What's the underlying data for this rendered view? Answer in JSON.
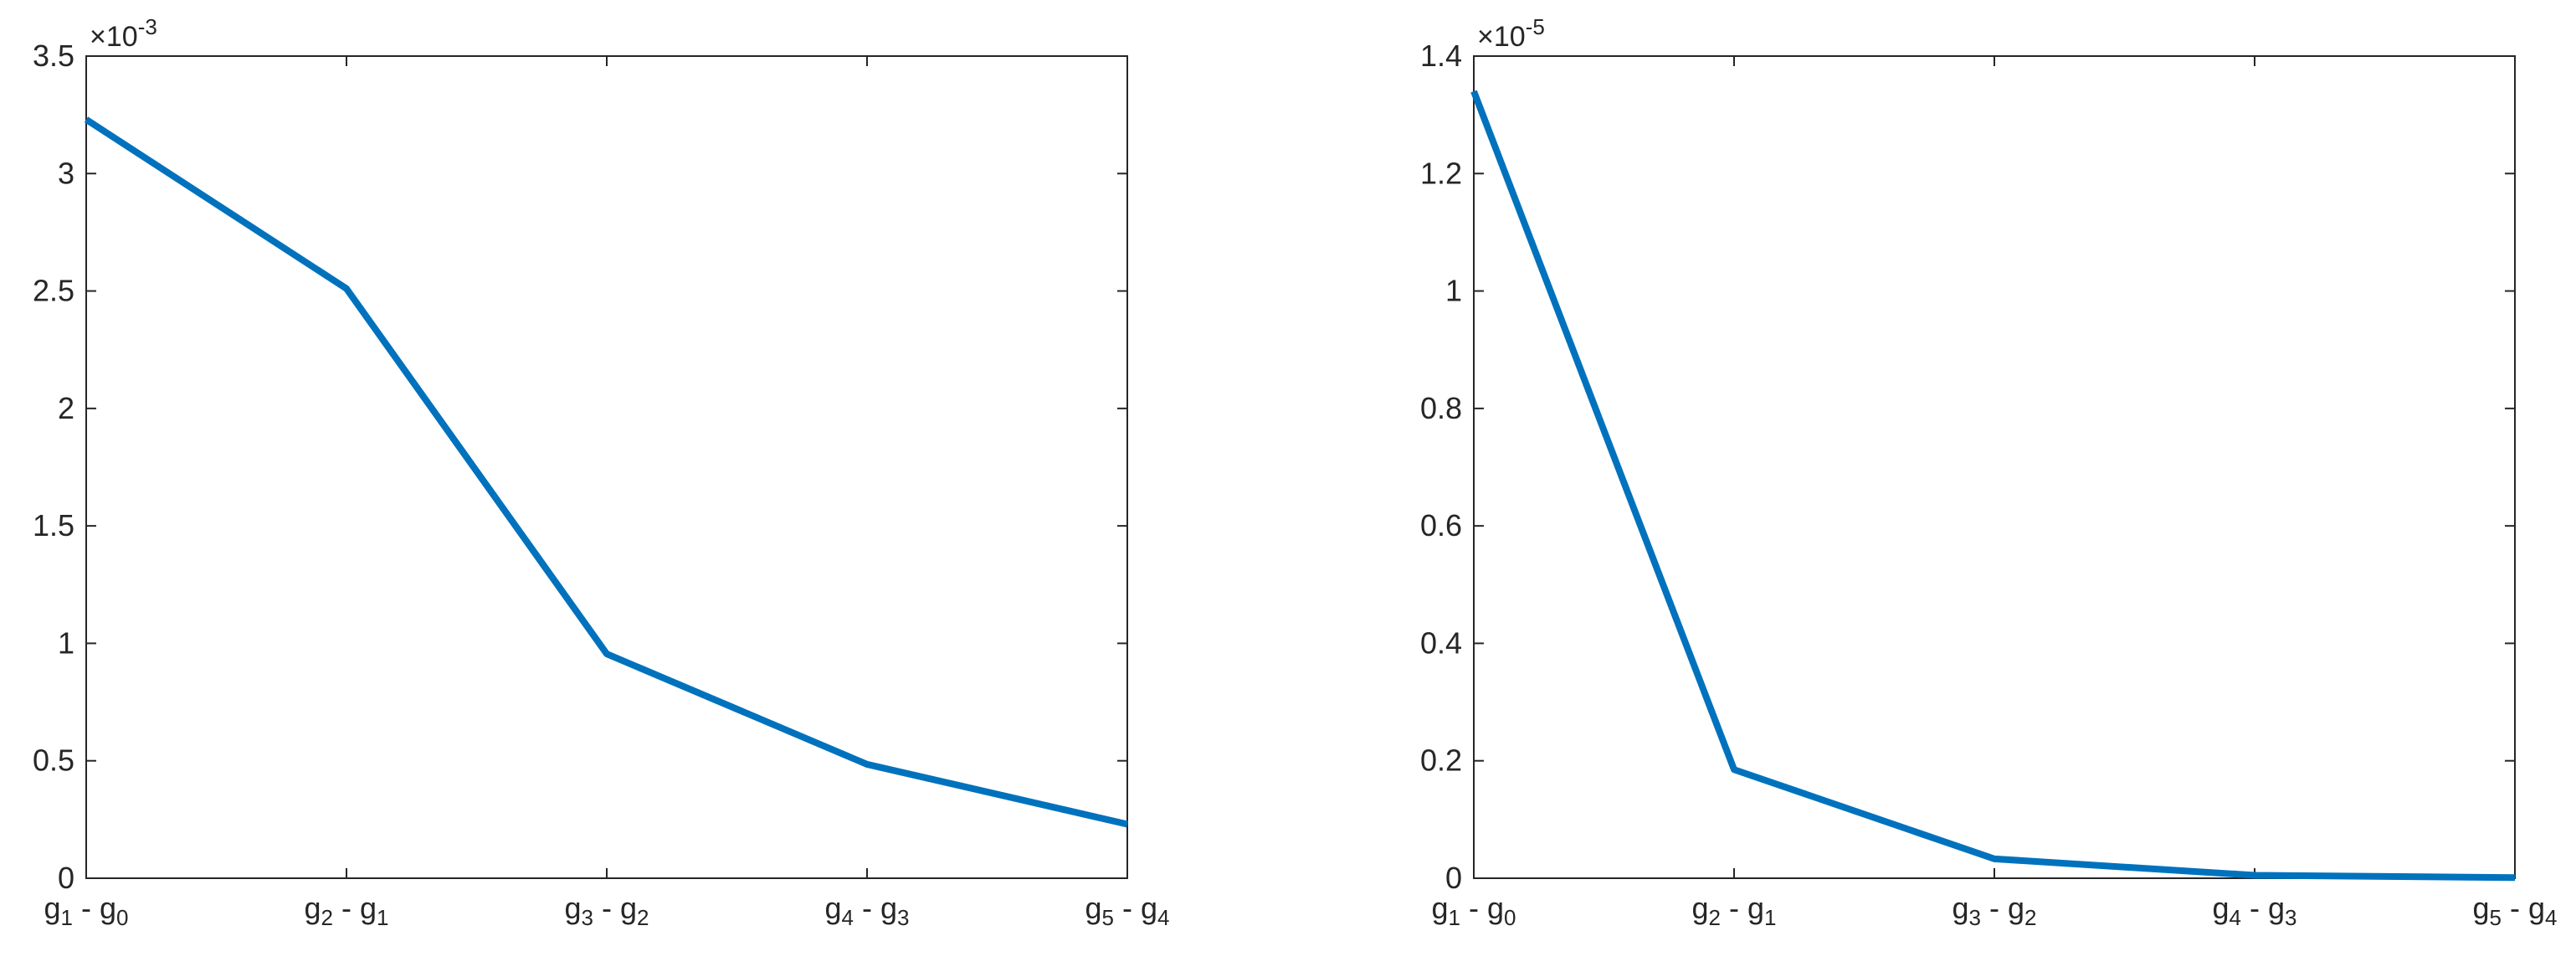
{
  "chart_data": [
    {
      "type": "line",
      "categories": [
        "g1 - g0",
        "g2 - g1",
        "g3 - g2",
        "g4 - g3",
        "g5 - g4"
      ],
      "category_labels": [
        {
          "base": "g",
          "sub1": "1",
          "sep": " - ",
          "base2": "g",
          "sub2": "0"
        },
        {
          "base": "g",
          "sub1": "2",
          "sep": " - ",
          "base2": "g",
          "sub2": "1"
        },
        {
          "base": "g",
          "sub1": "3",
          "sep": " - ",
          "base2": "g",
          "sub2": "2"
        },
        {
          "base": "g",
          "sub1": "4",
          "sep": " - ",
          "base2": "g",
          "sub2": "3"
        },
        {
          "base": "g",
          "sub1": "5",
          "sep": " - ",
          "base2": "g",
          "sub2": "4"
        }
      ],
      "values": [
        0.00323,
        0.00251,
        0.000955,
        0.000485,
        0.00023
      ],
      "ylim": [
        0,
        0.0035
      ],
      "yticks": [
        0,
        0.0005,
        0.001,
        0.0015,
        0.002,
        0.0025,
        0.003,
        0.0035
      ],
      "ytick_labels": [
        "0",
        "0.5",
        "1",
        "1.5",
        "2",
        "2.5",
        "3",
        "3.5"
      ],
      "exponent_base": "×10",
      "exponent": "-3",
      "color": "#0072BD",
      "grid": false
    },
    {
      "type": "line",
      "categories": [
        "g1 - g0",
        "g2 - g1",
        "g3 - g2",
        "g4 - g3",
        "g5 - g4"
      ],
      "category_labels": [
        {
          "base": "g",
          "sub1": "1",
          "sep": " - ",
          "base2": "g",
          "sub2": "0"
        },
        {
          "base": "g",
          "sub1": "2",
          "sep": " - ",
          "base2": "g",
          "sub2": "1"
        },
        {
          "base": "g",
          "sub1": "3",
          "sep": " - ",
          "base2": "g",
          "sub2": "2"
        },
        {
          "base": "g",
          "sub1": "4",
          "sep": " - ",
          "base2": "g",
          "sub2": "3"
        },
        {
          "base": "g",
          "sub1": "5",
          "sep": " - ",
          "base2": "g",
          "sub2": "4"
        }
      ],
      "values": [
        1.34e-05,
        1.85e-06,
        3.3e-07,
        5e-08,
        1e-08
      ],
      "ylim": [
        0,
        1.4e-05
      ],
      "yticks": [
        0,
        2e-06,
        4e-06,
        6e-06,
        8e-06,
        1e-05,
        1.2e-05,
        1.4e-05
      ],
      "ytick_labels": [
        "0",
        "0.2",
        "0.4",
        "0.6",
        "0.8",
        "1",
        "1.2",
        "1.4"
      ],
      "exponent_base": "×10",
      "exponent": "-5",
      "color": "#0072BD",
      "grid": false
    }
  ]
}
